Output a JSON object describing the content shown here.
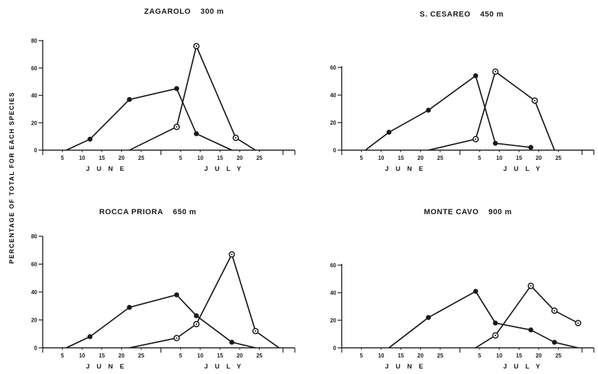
{
  "figure": {
    "ylabel": "PERCENTAGE OF TOTAL FOR EACH SPECIES"
  },
  "chart_data": [
    {
      "type": "line",
      "title_name": "ZAGAROLO",
      "title_alt": "300 m",
      "ylim": [
        0,
        80
      ],
      "yticks": [
        "80",
        "60",
        "40",
        "20",
        "0"
      ],
      "xticks": [
        "5",
        "10",
        "15",
        "20",
        "25",
        "5",
        "10",
        "15",
        "20",
        "25"
      ],
      "months": [
        "JUNE",
        "JULY"
      ],
      "series": [
        {
          "marker": "filled",
          "points": [
            [
              6,
              0
            ],
            [
              12,
              8
            ],
            [
              22,
              37
            ],
            [
              34,
              45
            ],
            [
              39,
              12
            ],
            [
              48,
              0
            ]
          ]
        },
        {
          "marker": "open",
          "points": [
            [
              22,
              0
            ],
            [
              34,
              17
            ],
            [
              39,
              76
            ],
            [
              49,
              9
            ],
            [
              54,
              0
            ]
          ]
        }
      ]
    },
    {
      "type": "line",
      "title_name": "S. CESAREO",
      "title_alt": "450 m",
      "ylim": [
        0,
        60
      ],
      "yticks": [
        "60",
        "40",
        "20",
        "0"
      ],
      "xticks": [
        "5",
        "10",
        "15",
        "20",
        "25",
        "5",
        "10",
        "15",
        "20",
        "25"
      ],
      "months": [
        "JUNE",
        "JULY"
      ],
      "series": [
        {
          "marker": "filled",
          "points": [
            [
              6,
              0
            ],
            [
              12,
              13
            ],
            [
              22,
              29
            ],
            [
              34,
              54
            ],
            [
              39,
              5
            ],
            [
              48,
              2
            ]
          ]
        },
        {
          "marker": "open",
          "points": [
            [
              22,
              0
            ],
            [
              34,
              8
            ],
            [
              39,
              57
            ],
            [
              49,
              36
            ],
            [
              54,
              0
            ]
          ]
        }
      ]
    },
    {
      "type": "line",
      "title_name": "ROCCA PRIORA",
      "title_alt": "650 m",
      "ylim": [
        0,
        80
      ],
      "yticks": [
        "80",
        "60",
        "40",
        "20",
        "0"
      ],
      "xticks": [
        "5",
        "10",
        "15",
        "20",
        "25",
        "5",
        "10",
        "15",
        "20",
        "25"
      ],
      "months": [
        "JUNE",
        "JULY"
      ],
      "series": [
        {
          "marker": "filled",
          "points": [
            [
              6,
              0
            ],
            [
              12,
              8
            ],
            [
              22,
              29
            ],
            [
              34,
              38
            ],
            [
              39,
              23
            ],
            [
              48,
              4
            ],
            [
              54,
              0
            ]
          ]
        },
        {
          "marker": "open",
          "points": [
            [
              22,
              0
            ],
            [
              34,
              7
            ],
            [
              39,
              17
            ],
            [
              48,
              67
            ],
            [
              54,
              12
            ],
            [
              60,
              0
            ]
          ]
        }
      ]
    },
    {
      "type": "line",
      "title_name": "MONTE CAVO",
      "title_alt": "900 m",
      "ylim": [
        0,
        60
      ],
      "yticks": [
        "60",
        "40",
        "20",
        "0"
      ],
      "xticks": [
        "5",
        "10",
        "15",
        "20",
        "25",
        "5",
        "10",
        "15",
        "20",
        "25"
      ],
      "months": [
        "JUNE",
        "JULY"
      ],
      "series": [
        {
          "marker": "filled",
          "points": [
            [
              12,
              0
            ],
            [
              22,
              22
            ],
            [
              34,
              41
            ],
            [
              39,
              18
            ],
            [
              48,
              13
            ],
            [
              54,
              4
            ],
            [
              60,
              0
            ]
          ]
        },
        {
          "marker": "open",
          "points": [
            [
              34,
              0
            ],
            [
              39,
              9
            ],
            [
              48,
              45
            ],
            [
              54,
              27
            ],
            [
              60,
              18
            ]
          ]
        }
      ]
    }
  ]
}
